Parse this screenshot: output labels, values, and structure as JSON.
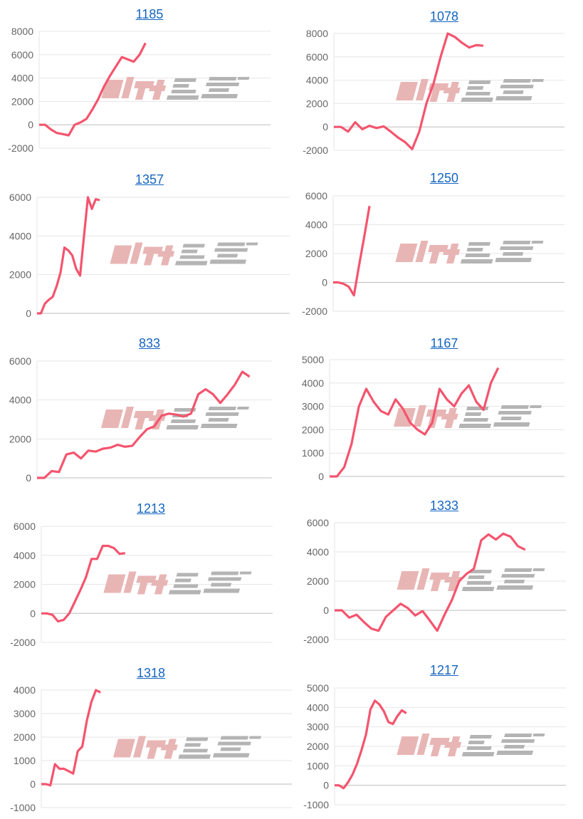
{
  "watermark_logo": "みんレポ",
  "colors": {
    "line": "#f4546e",
    "title_link": "#1565c0",
    "grid": "#e6e6e6",
    "zero_line": "#bdbdbd",
    "tick_text": "#666666",
    "watermark_pink": "#e8b5b5",
    "watermark_gray": "#b4b4b4"
  },
  "chart_data": [
    {
      "type": "line",
      "title": "1185",
      "ylim": [
        -2000,
        8000
      ],
      "yticks": [
        "8000",
        "6000",
        "4000",
        "2000",
        "0",
        "-2000"
      ],
      "grid": true,
      "values": [
        0,
        0,
        -400,
        -700,
        -800,
        -900,
        0,
        200,
        500,
        1300,
        2200,
        3300,
        4200,
        5000,
        5800,
        5600,
        5400,
        6000,
        7000
      ]
    },
    {
      "type": "line",
      "title": "1078",
      "ylim": [
        -2000,
        8000
      ],
      "yticks": [
        "8000",
        "6000",
        "4000",
        "2000",
        "0",
        "-2000"
      ],
      "grid": true,
      "values": [
        0,
        0,
        -400,
        400,
        -200,
        100,
        -100,
        50,
        -400,
        -900,
        -1300,
        -1900,
        -400,
        2000,
        3700,
        6000,
        8000,
        7700,
        7200,
        6800,
        7000,
        6950
      ]
    },
    {
      "type": "line",
      "title": "1357",
      "ylim": [
        0,
        6000
      ],
      "yticks": [
        "6000",
        "4000",
        "2000",
        "0"
      ],
      "grid": true,
      "values": [
        0,
        0,
        500,
        700,
        850,
        1400,
        2100,
        3400,
        3250,
        3000,
        2300,
        1950,
        4000,
        6000,
        5400,
        5900,
        5850
      ]
    },
    {
      "type": "line",
      "title": "1250",
      "ylim": [
        -2000,
        6000
      ],
      "yticks": [
        "6000",
        "4000",
        "2000",
        "0",
        "-2000"
      ],
      "grid": true,
      "values": [
        0,
        0,
        -100,
        -300,
        -900,
        1200,
        3200,
        5300
      ]
    },
    {
      "type": "line",
      "title": "833",
      "ylim": [
        0,
        6000
      ],
      "yticks": [
        "6000",
        "4000",
        "2000",
        "0"
      ],
      "grid": true,
      "values": [
        0,
        0,
        350,
        300,
        1200,
        1300,
        1000,
        1400,
        1350,
        1500,
        1550,
        1700,
        1600,
        1650,
        2100,
        2500,
        2650,
        3200,
        3300,
        3250,
        3150,
        3300,
        4300,
        4550,
        4300,
        3850,
        4300,
        4800,
        5450,
        5200
      ]
    },
    {
      "type": "line",
      "title": "1167",
      "ylim": [
        0,
        5000
      ],
      "yticks": [
        "5000",
        "4000",
        "3000",
        "2000",
        "1000",
        "0"
      ],
      "grid": true,
      "values": [
        0,
        0,
        400,
        1400,
        3000,
        3750,
        3200,
        2800,
        2650,
        3300,
        2900,
        2300,
        2000,
        1800,
        2300,
        3750,
        3300,
        3000,
        3550,
        3900,
        3200,
        2850,
        4000,
        4650
      ]
    },
    {
      "type": "line",
      "title": "1213",
      "ylim": [
        -2000,
        6000
      ],
      "yticks": [
        "6000",
        "4000",
        "2000",
        "0",
        "-2000"
      ],
      "grid": true,
      "values": [
        0,
        0,
        -100,
        -550,
        -450,
        0,
        800,
        1600,
        2500,
        3750,
        3750,
        4650,
        4650,
        4500,
        4100,
        4150
      ]
    },
    {
      "type": "line",
      "title": "1333",
      "ylim": [
        -2000,
        6000
      ],
      "yticks": [
        "6000",
        "4000",
        "2000",
        "0",
        "-2000"
      ],
      "grid": true,
      "values": [
        0,
        0,
        -500,
        -300,
        -800,
        -1250,
        -1400,
        -450,
        0,
        450,
        150,
        -350,
        -50,
        -700,
        -1400,
        -300,
        700,
        2000,
        2500,
        2850,
        4800,
        5200,
        4850,
        5250,
        5050,
        4400,
        4150
      ]
    },
    {
      "type": "line",
      "title": "1318",
      "ylim": [
        -1000,
        4000
      ],
      "yticks": [
        "4000",
        "3000",
        "2000",
        "1000",
        "0",
        "-1000"
      ],
      "grid": true,
      "values": [
        0,
        0,
        -50,
        850,
        650,
        650,
        550,
        450,
        1400,
        1600,
        2700,
        3500,
        4000,
        3900
      ]
    },
    {
      "type": "line",
      "title": "1217",
      "ylim": [
        -1000,
        5000
      ],
      "yticks": [
        "5000",
        "4000",
        "3000",
        "2000",
        "1000",
        "0",
        "-1000"
      ],
      "grid": true,
      "values": [
        0,
        0,
        -150,
        150,
        550,
        1100,
        1800,
        2600,
        3900,
        4350,
        4150,
        3800,
        3250,
        3150,
        3550,
        3850,
        3700
      ]
    }
  ]
}
